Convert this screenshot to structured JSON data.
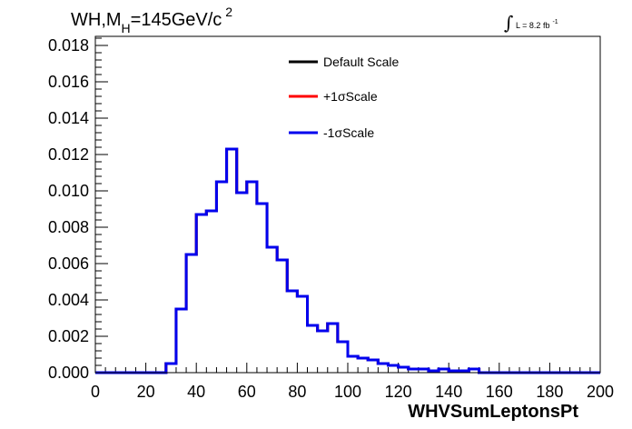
{
  "chart_data": {
    "type": "histogram",
    "title": "WH,M_H=145GeV/c^2",
    "title_parts": {
      "main": "WH,M",
      "sub": "H",
      "rest": "=145GeV/c",
      "sup": "2"
    },
    "lumi_label": {
      "integral": "∫",
      "text": "L = 8.2 fb",
      "sup": "-1"
    },
    "xlabel": "WHVSumLeptonsPt",
    "ylabel": "",
    "xlim": [
      0,
      200
    ],
    "ylim": [
      0,
      0.0185
    ],
    "x_ticks": [
      0,
      20,
      40,
      60,
      80,
      100,
      120,
      140,
      160,
      180,
      200
    ],
    "x_tick_labels": [
      "0",
      "20",
      "40",
      "60",
      "80",
      "100",
      "120",
      "140",
      "160",
      "180",
      "200"
    ],
    "y_ticks": [
      0,
      0.002,
      0.004,
      0.006,
      0.008,
      0.01,
      0.012,
      0.014,
      0.016,
      0.018
    ],
    "y_tick_labels": [
      "0.000",
      "0.002",
      "0.004",
      "0.006",
      "0.008",
      "0.010",
      "0.012",
      "0.014",
      "0.016",
      "0.018"
    ],
    "grid": false,
    "legend_position": "top-center",
    "bin_edges": [
      0,
      4,
      8,
      12,
      16,
      20,
      24,
      28,
      32,
      36,
      40,
      44,
      48,
      52,
      56,
      60,
      64,
      68,
      72,
      76,
      80,
      84,
      88,
      92,
      96,
      100,
      104,
      108,
      112,
      116,
      120,
      124,
      128,
      132,
      136,
      140,
      144,
      148,
      152,
      156,
      160,
      164,
      168,
      172,
      176,
      180,
      184,
      188,
      192,
      196,
      200
    ],
    "series": [
      {
        "name": "Default Scale",
        "color": "#000000",
        "values": [
          0,
          0,
          0,
          0,
          0,
          0,
          0,
          0.0005,
          0.0035,
          0.0065,
          0.0087,
          0.0089,
          0.0105,
          0.0123,
          0.0099,
          0.0105,
          0.0093,
          0.0069,
          0.0062,
          0.0045,
          0.0042,
          0.0026,
          0.0023,
          0.0027,
          0.0017,
          0.0009,
          0.0008,
          0.0007,
          0.0005,
          0.0004,
          0.0003,
          0.0002,
          0.0002,
          0.0001,
          0.0002,
          0.0001,
          0.0001,
          0.0002,
          0,
          0,
          0,
          0,
          0,
          0,
          0,
          0,
          0,
          0,
          0,
          0
        ]
      },
      {
        "name": "+1σScale",
        "color": "#ff0000",
        "values": [
          0,
          0,
          0,
          0,
          0,
          0,
          0,
          0.0005,
          0.0035,
          0.0065,
          0.0087,
          0.0089,
          0.0105,
          0.0123,
          0.0099,
          0.0105,
          0.0093,
          0.0069,
          0.0062,
          0.0045,
          0.0042,
          0.0026,
          0.0023,
          0.0027,
          0.0017,
          0.0009,
          0.0008,
          0.0007,
          0.0005,
          0.0004,
          0.0003,
          0.0002,
          0.0002,
          0.0001,
          0.0002,
          0.0001,
          0.0001,
          0.0002,
          0,
          0,
          0,
          0,
          0,
          0,
          0,
          0,
          0,
          0,
          0,
          0
        ]
      },
      {
        "name": "-1σScale",
        "color": "#0000ee",
        "values": [
          0,
          0,
          0,
          0,
          0,
          0,
          0,
          0.0005,
          0.0035,
          0.0065,
          0.0087,
          0.0089,
          0.0105,
          0.0123,
          0.0099,
          0.0105,
          0.0093,
          0.0069,
          0.0062,
          0.0045,
          0.0042,
          0.0026,
          0.0023,
          0.0027,
          0.0017,
          0.0009,
          0.0008,
          0.0007,
          0.0005,
          0.0004,
          0.0003,
          0.0002,
          0.0002,
          0.0001,
          0.0002,
          0.0001,
          0.0001,
          0.0002,
          0,
          0,
          0,
          0,
          0,
          0,
          0,
          0,
          0,
          0,
          0,
          0
        ]
      }
    ]
  }
}
